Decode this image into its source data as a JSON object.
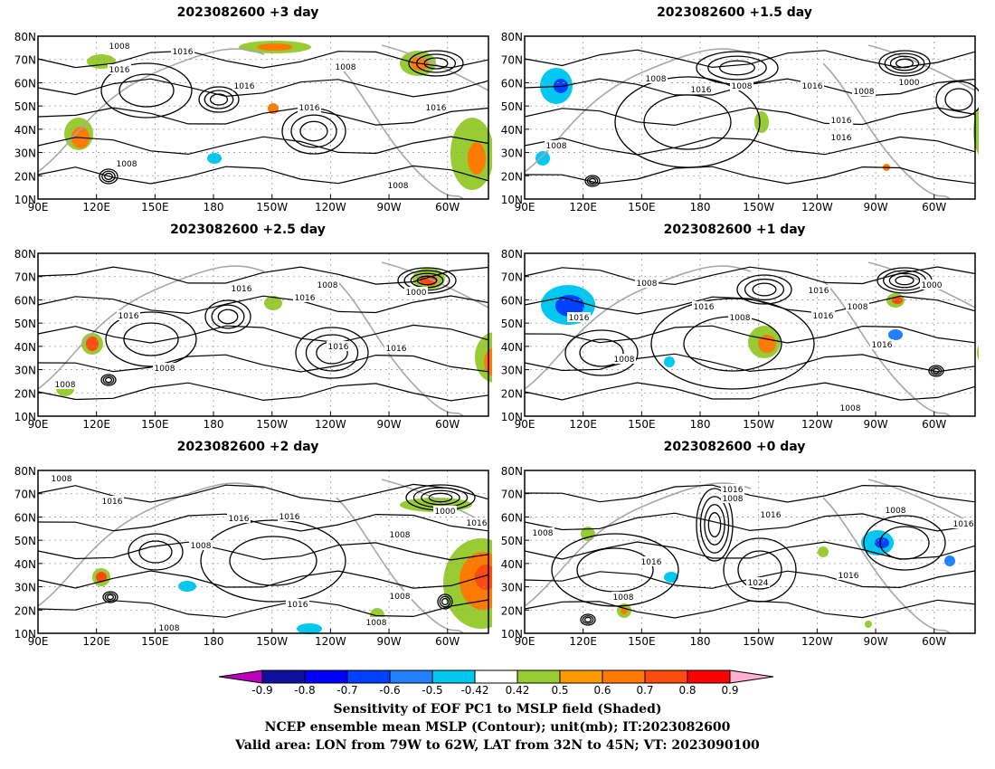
{
  "panels": [
    {
      "title": "2023082600  +3 day",
      "contour_labels": [
        "1008",
        "1016",
        "1016",
        "1016",
        "1016",
        "1008",
        "1008",
        "1008",
        "1016"
      ]
    },
    {
      "title": "2023082600  +1.5 day",
      "contour_labels": [
        "1008",
        "1016",
        "1008",
        "1016",
        "1008",
        "1000",
        "1016",
        "1016",
        "1008"
      ]
    },
    {
      "title": "2023082600  +2.5 day",
      "contour_labels": [
        "1016",
        "1016",
        "1016",
        "1008",
        "1000",
        "1016",
        "1016",
        "1008",
        "1008"
      ]
    },
    {
      "title": "2023082600  +1 day",
      "contour_labels": [
        "1008",
        "1016",
        "1016",
        "1008",
        "1016",
        "1008",
        "1000",
        "1016",
        "1016",
        "1008",
        "1008"
      ]
    },
    {
      "title": "2023082600  +2 day",
      "contour_labels": [
        "1008",
        "1016",
        "1008",
        "1016",
        "1016",
        "1008",
        "1000",
        "1016",
        "1008",
        "1016",
        "1008",
        "1008"
      ]
    },
    {
      "title": "2023082600  +0 day",
      "contour_labels": [
        "1016",
        "1008",
        "1016",
        "1008",
        "1016",
        "1024",
        "1008",
        "1016",
        "1016",
        "1008"
      ]
    }
  ],
  "axes": {
    "x_ticks": [
      "90E",
      "120E",
      "150E",
      "180",
      "150W",
      "120W",
      "90W",
      "60W"
    ],
    "y_ticks": [
      "10N",
      "20N",
      "30N",
      "40N",
      "50N",
      "60N",
      "70N",
      "80N"
    ]
  },
  "colorbar": {
    "labels": [
      "-0.9",
      "-0.8",
      "-0.7",
      "-0.6",
      "-0.5",
      "-0.42",
      "0.42",
      "0.5",
      "0.6",
      "0.7",
      "0.8",
      "0.9"
    ],
    "colors": {
      "under": "#c000c0",
      "n09": "#1010a0",
      "n08": "#0000ff",
      "n07": "#0040ff",
      "n06": "#2080ff",
      "n05": "#00c8f0",
      "neutral": "#ffffff",
      "p042": "#99cc33",
      "p05": "#ff9900",
      "p06": "#ff7a00",
      "p07": "#ff4a10",
      "p08": "#ff0000",
      "over": "#ffb0d0"
    }
  },
  "captions": {
    "line1": "Sensitivity of EOF PC1 to MSLP field (Shaded)",
    "line2": "NCEP ensemble mean MSLP (Contour); unit(mb); IT:2023082600",
    "line3": "Valid area: LON from 79W to 62W, LAT from 32N to 45N; VT: 2023090100"
  }
}
